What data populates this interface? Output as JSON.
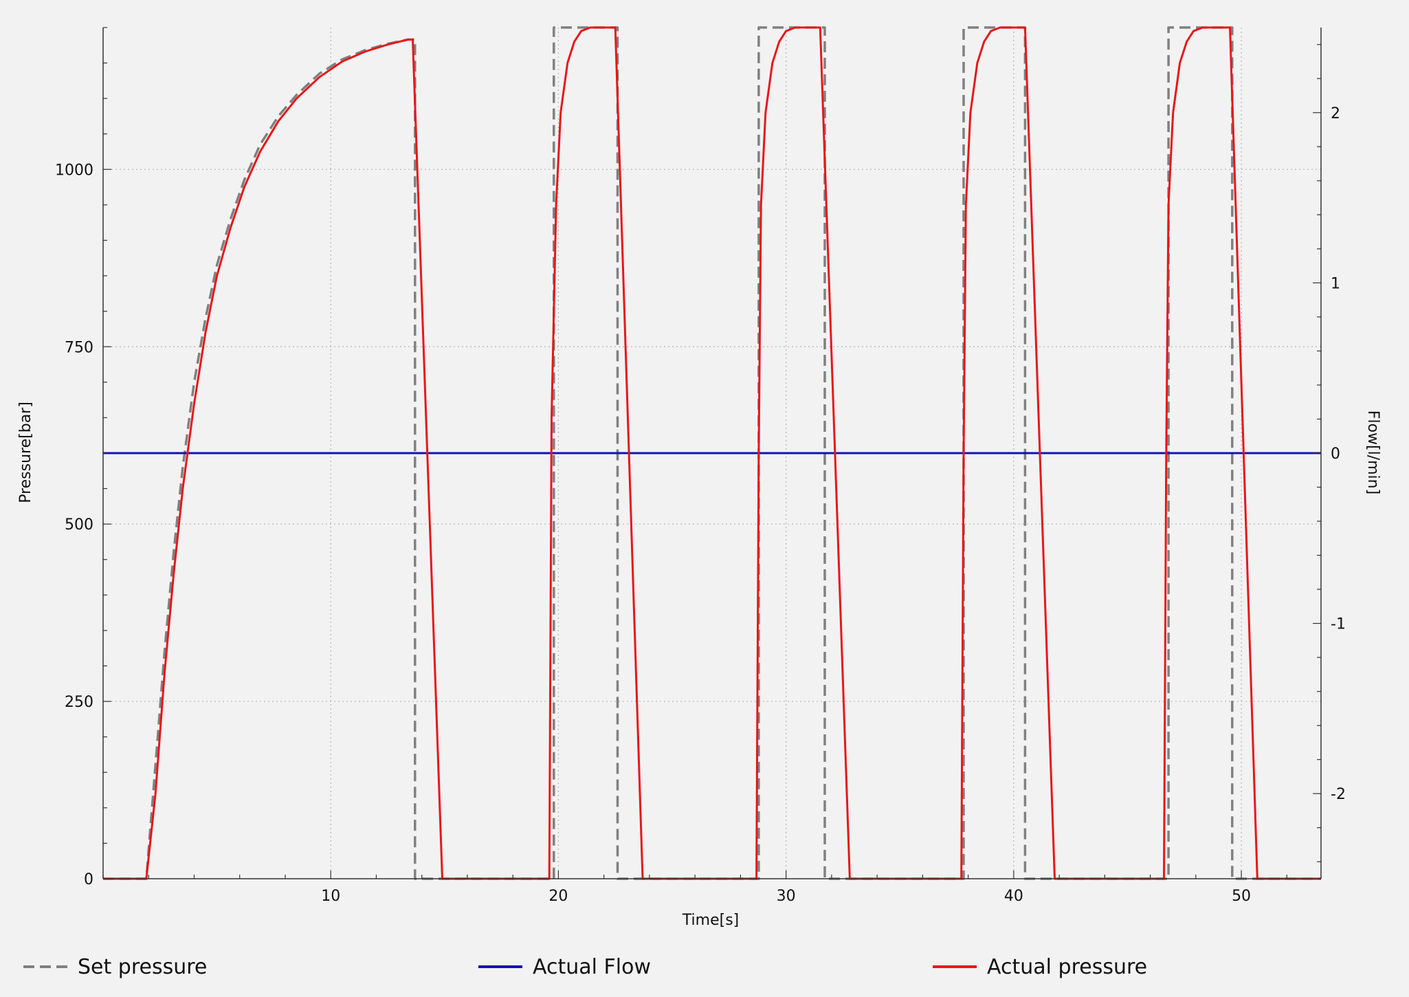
{
  "chart_data": {
    "type": "line",
    "title": "",
    "xlabel": "Time[s]",
    "ylabel": "Pressure[bar]",
    "ylabel_right": "Flow[l/min]",
    "xlim": [
      0,
      53.5
    ],
    "ylim": [
      0,
      1200
    ],
    "ylim_right": [
      -2.5,
      2.5
    ],
    "x_ticks": [
      10,
      20,
      30,
      40,
      50
    ],
    "x_tick_labels": [
      "10",
      "20",
      "30",
      "40",
      "50"
    ],
    "y_ticks": [
      0,
      250,
      500,
      750,
      1000
    ],
    "y_tick_labels": [
      "0",
      "250",
      "500",
      "750",
      "1000"
    ],
    "y_right_ticks": [
      -2,
      -1,
      0,
      1,
      2
    ],
    "y_right_tick_labels": [
      "-2",
      "-1",
      "0",
      "1",
      "2"
    ],
    "grid": true,
    "legend_position": "bottom",
    "series": [
      {
        "name": "Set pressure",
        "axis": "left",
        "style": "dashed",
        "color": "#808080",
        "x": [
          0,
          1.9,
          2.3,
          2.7,
          3.1,
          3.5,
          4.0,
          4.5,
          5.0,
          5.6,
          6.2,
          6.9,
          7.7,
          8.5,
          9.5,
          10.5,
          11.5,
          12.5,
          13.4,
          13.7,
          13.7,
          19.8,
          19.8,
          22.6,
          22.6,
          28.8,
          28.8,
          31.7,
          31.7,
          37.8,
          37.8,
          40.5,
          40.5,
          46.8,
          46.8,
          49.6,
          49.6,
          53.5
        ],
        "y": [
          0,
          0,
          160,
          320,
          460,
          580,
          700,
          790,
          865,
          930,
          985,
          1035,
          1075,
          1105,
          1135,
          1155,
          1168,
          1177,
          1183,
          1183,
          0,
          0,
          1200,
          1200,
          0,
          0,
          1200,
          1200,
          0,
          0,
          1200,
          1200,
          0,
          0,
          1200,
          1200,
          0,
          0
        ]
      },
      {
        "name": "Actual Flow",
        "axis": "right",
        "style": "solid",
        "color": "#1111bb",
        "x": [
          0,
          53.5
        ],
        "y": [
          0,
          0
        ]
      },
      {
        "name": "Actual pressure",
        "axis": "left",
        "style": "solid",
        "color": "#e8161a",
        "x": [
          0,
          1.9,
          2.3,
          2.7,
          3.1,
          3.5,
          4.0,
          4.5,
          5.0,
          5.6,
          6.2,
          6.9,
          7.7,
          8.5,
          9.5,
          10.5,
          11.5,
          12.5,
          13.4,
          13.6,
          14.9,
          19.6,
          19.7,
          19.9,
          20.1,
          20.4,
          20.7,
          21.0,
          21.4,
          21.8,
          22.5,
          23.7,
          28.7,
          28.8,
          28.9,
          29.1,
          29.4,
          29.7,
          30.0,
          30.4,
          30.8,
          31.5,
          32.8,
          37.7,
          37.8,
          37.9,
          38.1,
          38.4,
          38.7,
          39.0,
          39.4,
          39.8,
          40.5,
          41.8,
          46.6,
          46.7,
          46.8,
          47.0,
          47.3,
          47.6,
          47.9,
          48.3,
          48.7,
          49.5,
          50.7,
          53.5
        ],
        "y": [
          0,
          0,
          120,
          290,
          430,
          550,
          670,
          770,
          850,
          918,
          975,
          1025,
          1068,
          1100,
          1130,
          1152,
          1166,
          1176,
          1183,
          1183,
          0,
          0,
          650,
          950,
          1080,
          1150,
          1180,
          1195,
          1200,
          1200,
          1200,
          0,
          0,
          600,
          950,
          1080,
          1150,
          1180,
          1195,
          1200,
          1200,
          1200,
          0,
          0,
          600,
          950,
          1080,
          1150,
          1180,
          1195,
          1200,
          1200,
          1200,
          0,
          0,
          600,
          950,
          1080,
          1150,
          1180,
          1195,
          1200,
          1200,
          1200,
          0,
          0
        ]
      }
    ]
  }
}
